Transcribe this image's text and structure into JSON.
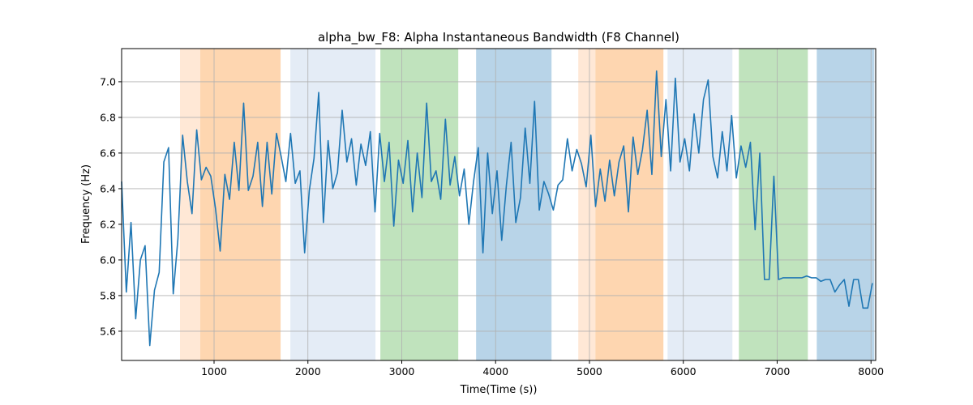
{
  "chart_data": {
    "type": "line",
    "title": "alpha_bw_F8: Alpha Instantaneous Bandwidth (F8 Channel)",
    "xlabel": "Time(Time (s))",
    "ylabel": "Frequency (Hz)",
    "xlim": [
      15,
      8050
    ],
    "ylim": [
      5.436,
      7.186
    ],
    "xticks": [
      1000,
      2000,
      3000,
      4000,
      5000,
      6000,
      7000,
      8000
    ],
    "yticks": [
      5.6,
      5.8,
      {
        "value": 6,
        "label": "6.0"
      },
      6.2,
      6.4,
      6.6,
      6.8,
      {
        "value": 7,
        "label": "7.0"
      }
    ],
    "grid": true,
    "spans": [
      {
        "start": 637,
        "end": 853,
        "color": "#ffe8d6"
      },
      {
        "start": 853,
        "end": 1709,
        "color": "#fed6b0"
      },
      {
        "start": 1813,
        "end": 2720,
        "color": "#e4ecf6"
      },
      {
        "start": 2772,
        "end": 3602,
        "color": "#c0e3bd"
      },
      {
        "start": 3792,
        "end": 4596,
        "color": "#b8d4e8"
      },
      {
        "start": 4881,
        "end": 5063,
        "color": "#ffe8d6"
      },
      {
        "start": 5063,
        "end": 5788,
        "color": "#fed6b0"
      },
      {
        "start": 5832,
        "end": 6523,
        "color": "#e4ecf6"
      },
      {
        "start": 6592,
        "end": 7327,
        "color": "#c0e3bd"
      },
      {
        "start": 7422,
        "end": 8036,
        "color": "#b8d4e8"
      }
    ],
    "x": [
      15,
      65,
      115,
      165,
      215,
      265,
      315,
      365,
      415,
      465,
      515,
      565,
      615,
      665,
      715,
      765,
      815,
      865,
      915,
      965,
      1015,
      1065,
      1115,
      1165,
      1215,
      1265,
      1315,
      1365,
      1415,
      1465,
      1515,
      1565,
      1615,
      1665,
      1715,
      1765,
      1815,
      1865,
      1915,
      1965,
      2015,
      2065,
      2115,
      2165,
      2215,
      2265,
      2315,
      2365,
      2415,
      2465,
      2515,
      2565,
      2615,
      2665,
      2715,
      2765,
      2815,
      2865,
      2915,
      2965,
      3015,
      3065,
      3115,
      3165,
      3215,
      3265,
      3315,
      3365,
      3415,
      3465,
      3515,
      3565,
      3615,
      3665,
      3715,
      3765,
      3815,
      3865,
      3915,
      3965,
      4015,
      4065,
      4115,
      4165,
      4215,
      4265,
      4315,
      4365,
      4415,
      4465,
      4515,
      4565,
      4615,
      4665,
      4715,
      4765,
      4815,
      4865,
      4915,
      4965,
      5015,
      5065,
      5115,
      5165,
      5215,
      5265,
      5315,
      5365,
      5415,
      5465,
      5515,
      5565,
      5615,
      5665,
      5715,
      5765,
      5815,
      5865,
      5915,
      5965,
      6015,
      6065,
      6115,
      6165,
      6215,
      6265,
      6315,
      6365,
      6415,
      6465,
      6515,
      6565,
      6615,
      6665,
      6715,
      6765,
      6815,
      6865,
      6915,
      6965,
      7015,
      7065,
      7115,
      7165,
      7215,
      7265,
      7315,
      7365,
      7415,
      7465,
      7515,
      7565,
      7615,
      7665,
      7715,
      7765,
      7815,
      7865,
      7915,
      7965,
      8015
    ],
    "series": [
      {
        "color": "#1f77b4",
        "values": [
          6.44,
          5.82,
          6.21,
          5.67,
          6.0,
          6.08,
          5.52,
          5.83,
          5.93,
          6.55,
          6.63,
          5.81,
          6.12,
          6.7,
          6.44,
          6.26,
          6.73,
          6.45,
          6.52,
          6.47,
          6.29,
          6.05,
          6.48,
          6.34,
          6.66,
          6.39,
          6.88,
          6.39,
          6.47,
          6.66,
          6.3,
          6.66,
          6.37,
          6.71,
          6.58,
          6.44,
          6.71,
          6.43,
          6.5,
          6.04,
          6.39,
          6.57,
          6.94,
          6.21,
          6.67,
          6.4,
          6.49,
          6.84,
          6.55,
          6.68,
          6.42,
          6.65,
          6.53,
          6.72,
          6.27,
          6.71,
          6.44,
          6.66,
          6.19,
          6.56,
          6.43,
          6.67,
          6.27,
          6.6,
          6.35,
          6.88,
          6.44,
          6.5,
          6.34,
          6.79,
          6.42,
          6.58,
          6.36,
          6.51,
          6.2,
          6.44,
          6.63,
          6.04,
          6.6,
          6.26,
          6.5,
          6.11,
          6.42,
          6.66,
          6.21,
          6.35,
          6.74,
          6.43,
          6.89,
          6.28,
          6.44,
          6.37,
          6.28,
          6.42,
          6.45,
          6.68,
          6.5,
          6.62,
          6.54,
          6.41,
          6.7,
          6.3,
          6.51,
          6.33,
          6.56,
          6.36,
          6.55,
          6.64,
          6.27,
          6.69,
          6.48,
          6.62,
          6.84,
          6.48,
          7.06,
          6.58,
          6.9,
          6.5,
          7.02,
          6.55,
          6.68,
          6.5,
          6.82,
          6.6,
          6.9,
          7.01,
          6.58,
          6.46,
          6.72,
          6.5,
          6.81,
          6.46,
          6.64,
          6.52,
          6.66,
          6.17,
          6.6,
          5.89,
          5.89,
          6.47,
          5.89,
          5.9,
          5.9,
          5.9,
          5.9,
          5.9,
          5.91,
          5.9,
          5.9,
          5.88,
          5.89,
          5.89,
          5.82,
          5.86,
          5.89,
          5.74,
          5.89,
          5.89,
          5.73,
          5.73,
          5.87
        ]
      }
    ]
  }
}
